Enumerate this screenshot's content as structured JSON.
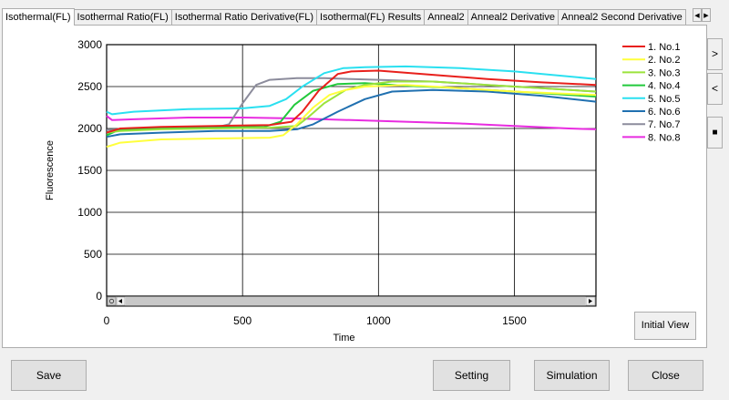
{
  "tabs": [
    {
      "label": "Isothermal(FL)",
      "active": true
    },
    {
      "label": "Isothermal Ratio(FL)"
    },
    {
      "label": "Isothermal Ratio Derivative(FL)"
    },
    {
      "label": "Isothermal(FL) Results"
    },
    {
      "label": "Anneal2"
    },
    {
      "label": "Anneal2 Derivative"
    },
    {
      "label": "Anneal2 Second Derivative"
    }
  ],
  "tab_nav": {
    "left": "◀",
    "right": "▶"
  },
  "side_buttons": {
    "expand": ">",
    "collapse": "<",
    "stop": "■"
  },
  "initial_view_label": "Initial View",
  "footer": {
    "save": "Save",
    "setting": "Setting",
    "simulation": "Simulation",
    "close": "Close"
  },
  "chart_data": {
    "type": "line",
    "xlabel": "Time",
    "ylabel": "Fluorescence",
    "xlim": [
      0,
      1800
    ],
    "ylim": [
      0,
      3000
    ],
    "xticks": [
      0,
      500,
      1000,
      1500
    ],
    "yticks": [
      0,
      500,
      1000,
      1500,
      2000,
      2500,
      3000
    ],
    "grid": true,
    "legend_position": "right",
    "series": [
      {
        "name": "1. No.1",
        "color": "#e8201c",
        "x": [
          0,
          50,
          200,
          400,
          600,
          680,
          720,
          780,
          850,
          900,
          1000,
          1200,
          1400,
          1600,
          1800
        ],
        "y": [
          1950,
          2000,
          2020,
          2030,
          2040,
          2080,
          2200,
          2450,
          2650,
          2680,
          2690,
          2640,
          2590,
          2550,
          2520
        ]
      },
      {
        "name": "2. No.2",
        "color": "#ffff3c",
        "x": [
          0,
          50,
          200,
          400,
          600,
          650,
          700,
          760,
          820,
          880,
          950,
          1100,
          1300,
          1500,
          1800
        ],
        "y": [
          1780,
          1830,
          1870,
          1880,
          1890,
          1920,
          2050,
          2250,
          2400,
          2460,
          2500,
          2520,
          2480,
          2440,
          2400
        ]
      },
      {
        "name": "3. No.3",
        "color": "#9be33c",
        "x": [
          0,
          50,
          200,
          400,
          600,
          700,
          740,
          800,
          880,
          950,
          1050,
          1200,
          1400,
          1600,
          1800
        ],
        "y": [
          1950,
          1970,
          1990,
          2000,
          2010,
          2030,
          2130,
          2300,
          2460,
          2520,
          2560,
          2560,
          2520,
          2480,
          2440
        ]
      },
      {
        "name": "4. No.4",
        "color": "#22c93c",
        "x": [
          0,
          50,
          200,
          400,
          580,
          640,
          690,
          760,
          850,
          950,
          1100,
          1300,
          1500,
          1800
        ],
        "y": [
          1920,
          1990,
          2000,
          2010,
          2020,
          2080,
          2280,
          2450,
          2530,
          2540,
          2510,
          2480,
          2440,
          2380
        ]
      },
      {
        "name": "5. No.5",
        "color": "#2ae0f0",
        "x": [
          0,
          20,
          100,
          300,
          500,
          600,
          660,
          720,
          800,
          870,
          950,
          1100,
          1300,
          1500,
          1800
        ],
        "y": [
          2200,
          2170,
          2200,
          2230,
          2240,
          2270,
          2350,
          2500,
          2660,
          2720,
          2730,
          2740,
          2720,
          2680,
          2590
        ]
      },
      {
        "name": "6. No.6",
        "color": "#2070b0",
        "x": [
          0,
          50,
          200,
          400,
          600,
          700,
          760,
          850,
          950,
          1050,
          1200,
          1400,
          1600,
          1800
        ],
        "y": [
          1900,
          1930,
          1950,
          1970,
          1970,
          1990,
          2050,
          2200,
          2350,
          2440,
          2460,
          2440,
          2390,
          2320
        ]
      },
      {
        "name": "7. No.7",
        "color": "#8c8c9c",
        "x": [
          0,
          50,
          200,
          400,
          450,
          500,
          550,
          600,
          700,
          800,
          900,
          1000,
          1100,
          1200,
          1400,
          1600,
          1800
        ],
        "y": [
          1980,
          1990,
          2000,
          2010,
          2050,
          2300,
          2520,
          2580,
          2600,
          2600,
          2590,
          2580,
          2570,
          2560,
          2520,
          2480,
          2440
        ]
      },
      {
        "name": "8. No.8",
        "color": "#e82ce0",
        "x": [
          0,
          20,
          100,
          300,
          500,
          700,
          900,
          1100,
          1300,
          1500,
          1700,
          1800
        ],
        "y": [
          2150,
          2100,
          2110,
          2130,
          2130,
          2120,
          2100,
          2080,
          2060,
          2030,
          2000,
          1990
        ]
      }
    ]
  }
}
